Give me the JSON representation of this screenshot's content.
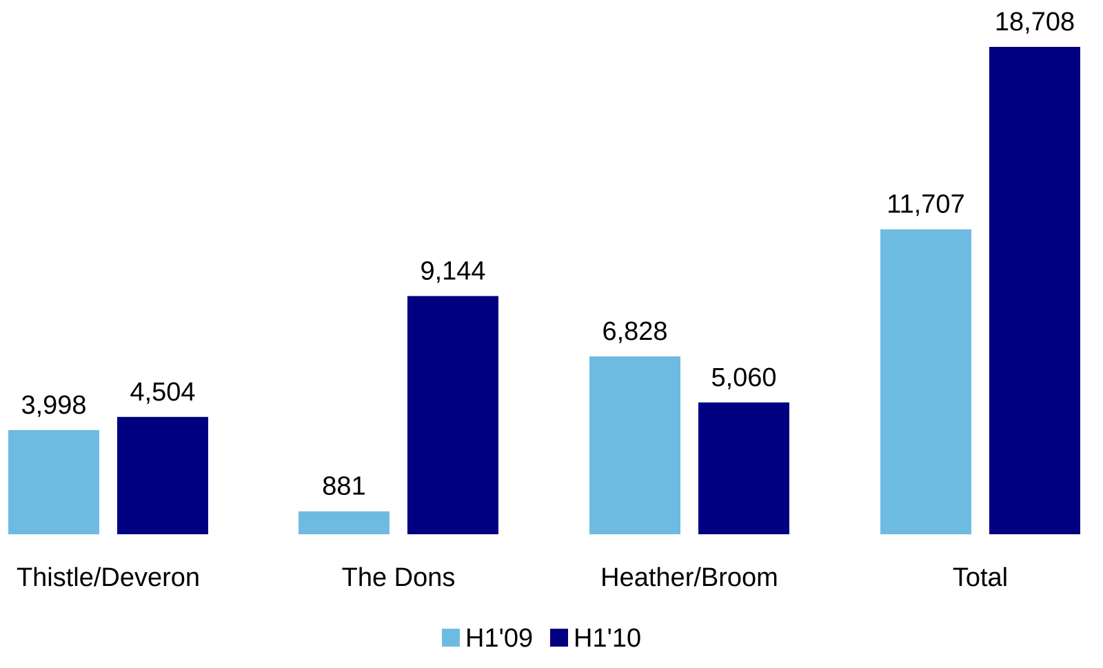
{
  "chart_data": {
    "type": "bar",
    "title": "",
    "xlabel": "",
    "ylabel": "",
    "categories": [
      "Thistle/Deveron",
      "The Dons",
      "Heather/Broom",
      "Total"
    ],
    "series": [
      {
        "name": "H1'09",
        "color": "#6EBBE2",
        "values": [
          3998,
          881,
          6828,
          11707
        ],
        "labels": [
          "3,998",
          "881",
          "6,828",
          "11,707"
        ]
      },
      {
        "name": "H1'10",
        "color": "#000080",
        "values": [
          4504,
          9144,
          5060,
          18708
        ],
        "labels": [
          "4,504",
          "9,144",
          "5,060",
          "18,708"
        ]
      }
    ],
    "ylim": [
      0,
      18708
    ],
    "grid": false,
    "legend_position": "bottom-center"
  }
}
